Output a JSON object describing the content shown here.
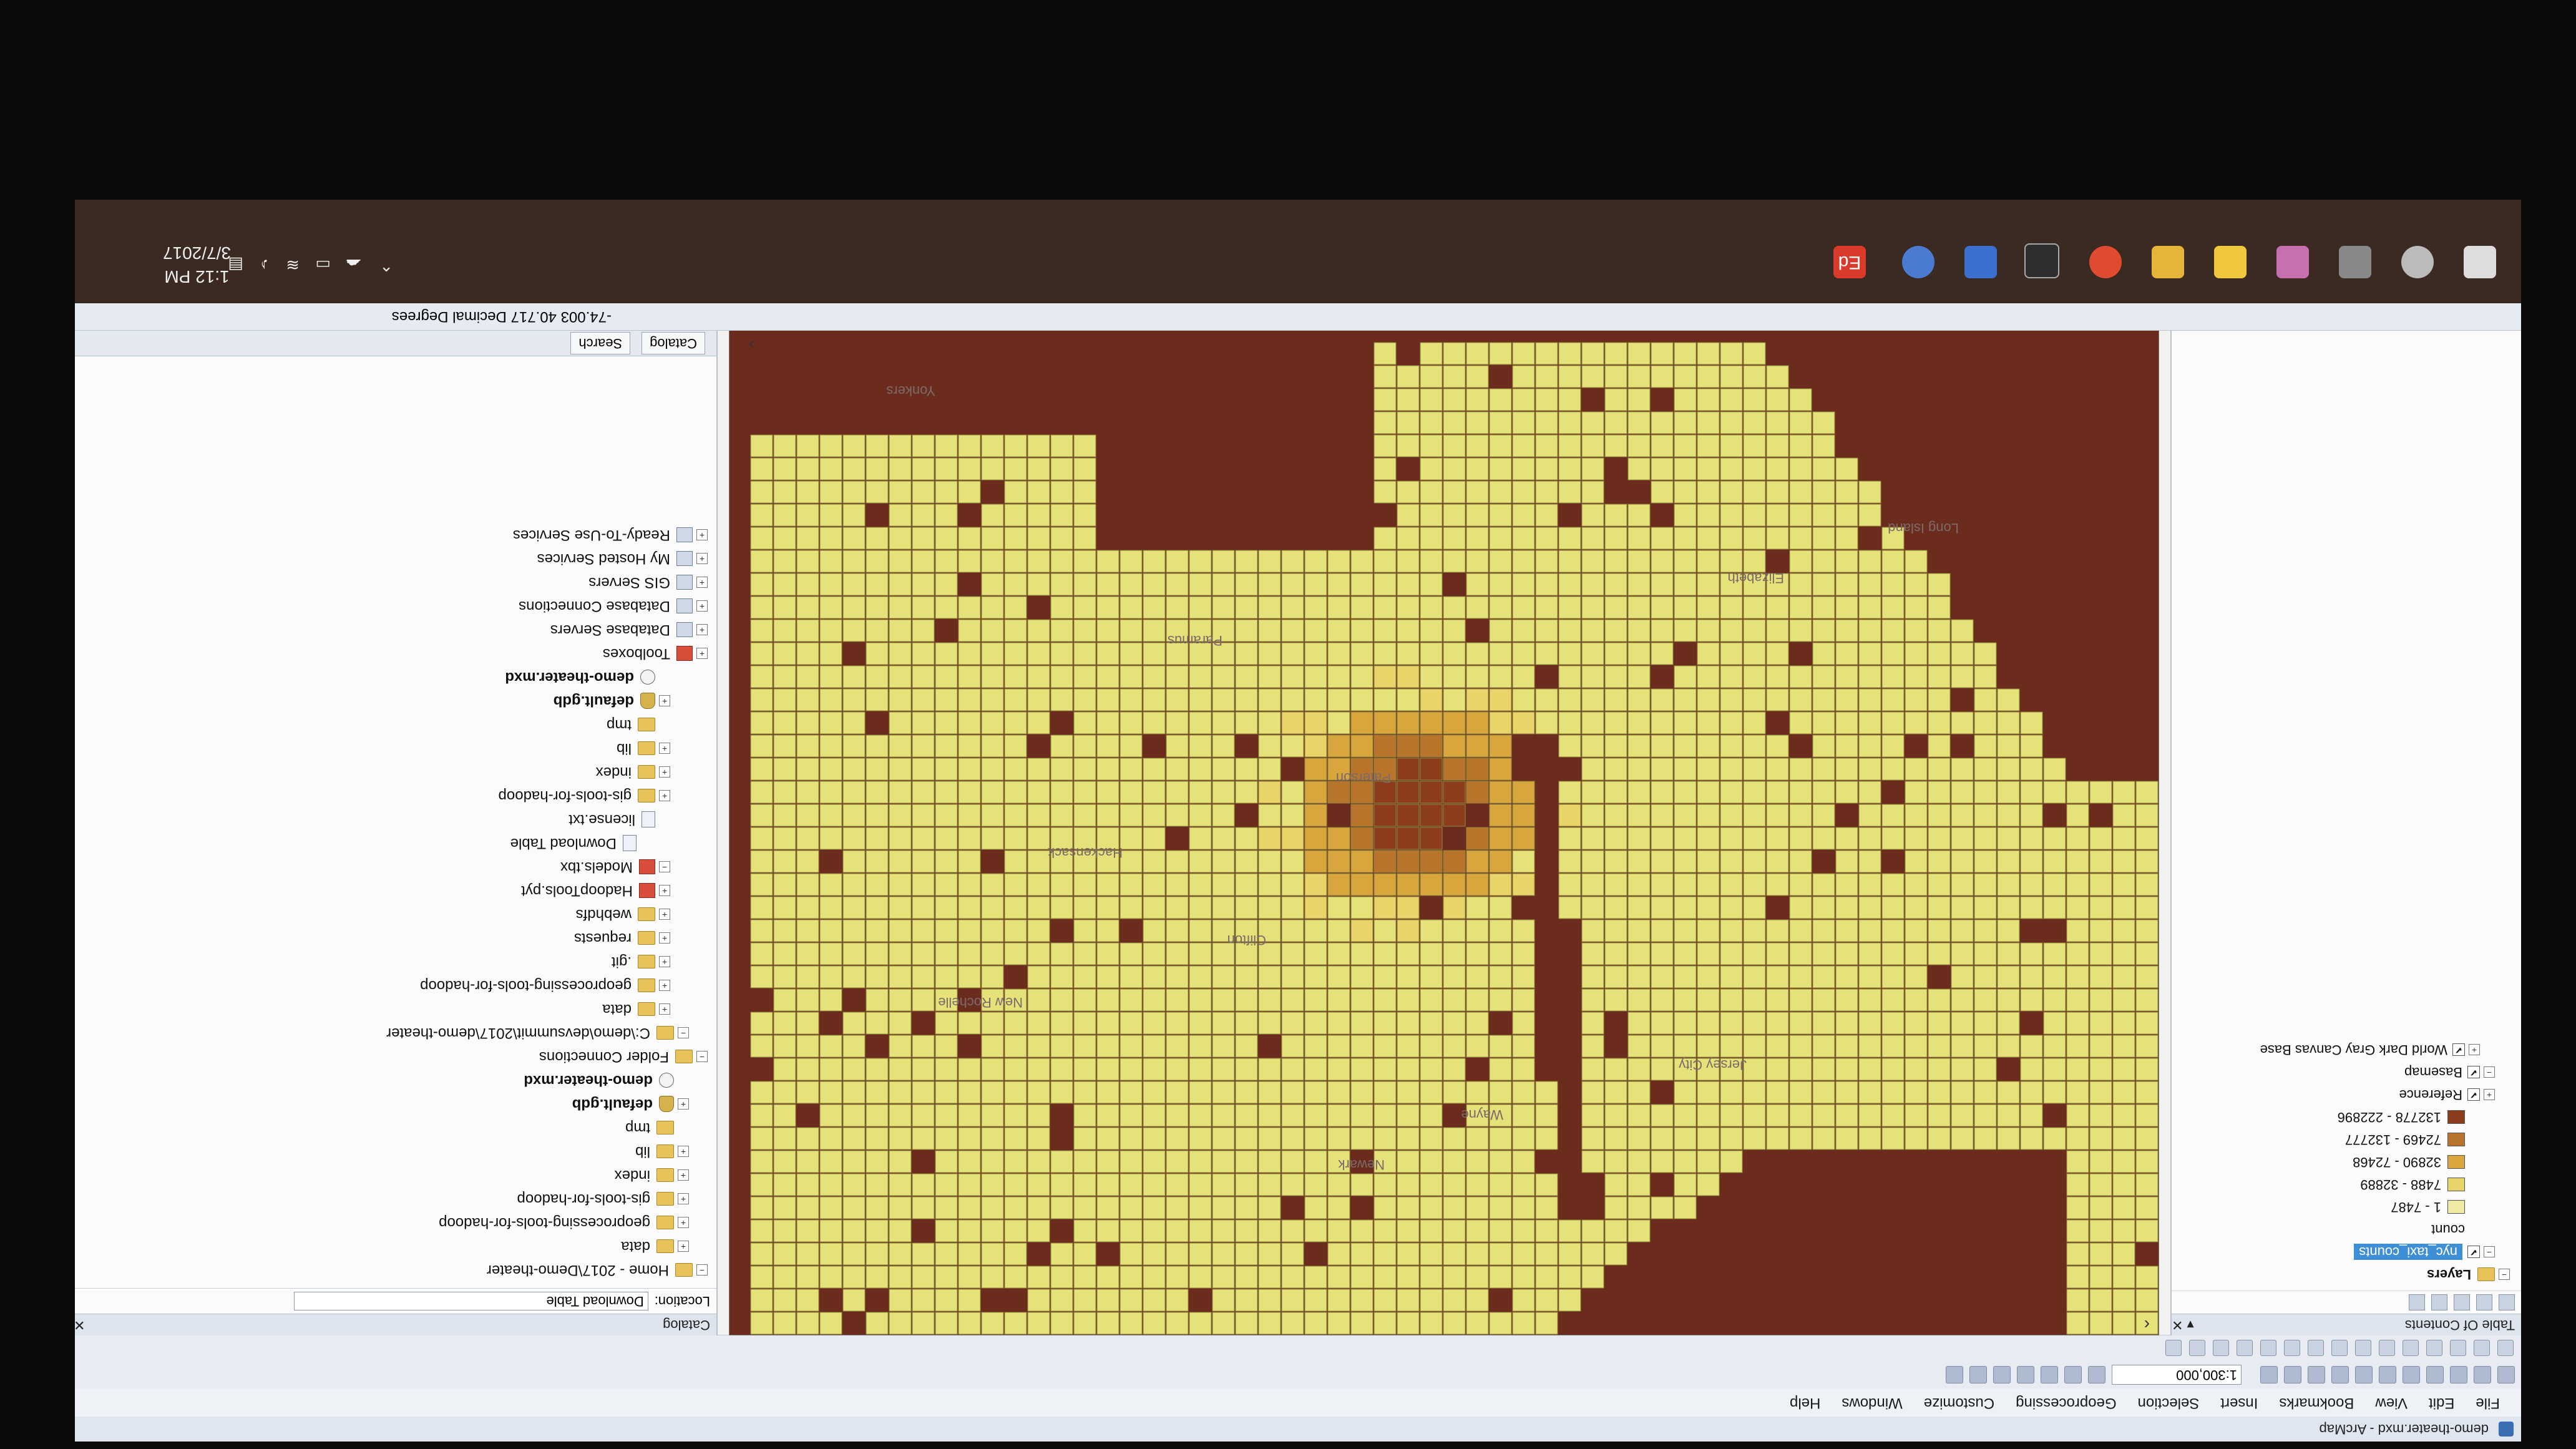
{
  "window": {
    "title": "demo-theater.mxd - ArcMap"
  },
  "menu": [
    "File",
    "Edit",
    "View",
    "Bookmarks",
    "Insert",
    "Selection",
    "Geoprocessing",
    "Customize",
    "Windows",
    "Help"
  ],
  "toolbar": {
    "scale": "1:300,000"
  },
  "toc": {
    "title": "Table Of Contents",
    "pin": "▾ ✕",
    "layers_label": "Layers",
    "selected_layer": "nyc_taxi_counts",
    "field": "count",
    "legend": [
      {
        "label": "1 - 7487",
        "color": "#efe9a4"
      },
      {
        "label": "7488 - 32889",
        "color": "#e9d46a"
      },
      {
        "label": "32890 - 72468",
        "color": "#d9a53d"
      },
      {
        "label": "72469 - 132777",
        "color": "#b8742a"
      },
      {
        "label": "132778 - 222896",
        "color": "#8a3c1b"
      }
    ],
    "reference": "Reference",
    "basemap": "Basemap",
    "basemap_layer": "World Dark Gray Canvas Base"
  },
  "map": {
    "colors": {
      "background": "#6b2c1d",
      "cell": "#e6e27a",
      "grid": "#8f8a3c"
    },
    "labels": [
      "Yonkers",
      "Paramus",
      "New Rochelle",
      "Hackensack",
      "Wayne",
      "Clifton",
      "Paterson",
      "Long Island",
      "Jersey City",
      "Newark",
      "Elizabeth"
    ]
  },
  "catalog": {
    "title": "Catalog",
    "location_label": "Location:",
    "location_value": "Download Table",
    "tree": [
      {
        "label": "Home - 2017\\Demo-theater",
        "icon": "folder",
        "level": 0,
        "expander": "−"
      },
      {
        "label": "data",
        "icon": "folder",
        "level": 1,
        "expander": "+"
      },
      {
        "label": "geoprocessing-tools-for-hadoop",
        "icon": "folder",
        "level": 1,
        "expander": "+"
      },
      {
        "label": "gis-tools-for-hadoop",
        "icon": "folder",
        "level": 1,
        "expander": "+"
      },
      {
        "label": "index",
        "icon": "folder",
        "level": 1,
        "expander": "+"
      },
      {
        "label": "lib",
        "icon": "folder",
        "level": 1,
        "expander": "+"
      },
      {
        "label": "tmp",
        "icon": "folder",
        "level": 1,
        "expander": ""
      },
      {
        "label": "default.gdb",
        "icon": "gdb",
        "level": 1,
        "expander": "+",
        "bold": true
      },
      {
        "label": "demo-theater.mxd",
        "icon": "mxd",
        "level": 1,
        "expander": "",
        "bold": true
      },
      {
        "label": "Folder Connections",
        "icon": "folder",
        "level": 0,
        "expander": "−"
      },
      {
        "label": "C:\\demo\\devsummit\\2017\\demo-theater",
        "icon": "folder",
        "level": 1,
        "expander": "−"
      },
      {
        "label": "data",
        "icon": "folder",
        "level": 2,
        "expander": "+"
      },
      {
        "label": "geoprocessing-tools-for-hadoop",
        "icon": "folder",
        "level": 2,
        "expander": "+"
      },
      {
        "label": ".git",
        "icon": "folder",
        "level": 2,
        "expander": "+"
      },
      {
        "label": "requests",
        "icon": "folder",
        "level": 2,
        "expander": "+"
      },
      {
        "label": "webhdfs",
        "icon": "folder",
        "level": 2,
        "expander": "+"
      },
      {
        "label": "HadoopTools.pyt",
        "icon": "toolbox",
        "level": 2,
        "expander": "+"
      },
      {
        "label": "Models.tbx",
        "icon": "toolbox",
        "level": 2,
        "expander": "−"
      },
      {
        "label": "Download Table",
        "icon": "model",
        "level": 3,
        "expander": ""
      },
      {
        "label": "license.txt",
        "icon": "file",
        "level": 2,
        "expander": ""
      },
      {
        "label": "gis-tools-for-hadoop",
        "icon": "folder",
        "level": 2,
        "expander": "+"
      },
      {
        "label": "index",
        "icon": "folder",
        "level": 2,
        "expander": "+"
      },
      {
        "label": "lib",
        "icon": "folder",
        "level": 2,
        "expander": "+"
      },
      {
        "label": "tmp",
        "icon": "folder",
        "level": 2,
        "expander": ""
      },
      {
        "label": "default.gdb",
        "icon": "gdb",
        "level": 2,
        "expander": "+",
        "bold": true
      },
      {
        "label": "demo-theater.mxd",
        "icon": "mxd",
        "level": 2,
        "expander": "",
        "bold": true
      },
      {
        "label": "Toolboxes",
        "icon": "toolbox",
        "level": 0,
        "expander": "+"
      },
      {
        "label": "Database Servers",
        "icon": "server",
        "level": 0,
        "expander": "+"
      },
      {
        "label": "Database Connections",
        "icon": "server",
        "level": 0,
        "expander": "+"
      },
      {
        "label": "GIS Servers",
        "icon": "server",
        "level": 0,
        "expander": "+"
      },
      {
        "label": "My Hosted Services",
        "icon": "server",
        "level": 0,
        "expander": "+"
      },
      {
        "label": "Ready-To-Use Services",
        "icon": "server",
        "level": 0,
        "expander": "+"
      }
    ],
    "tabs": [
      "Catalog",
      "Search"
    ]
  },
  "status": {
    "coords": "-74.003  40.717 Decimal Degrees"
  },
  "taskbar": {
    "time": "1:12 PM",
    "date": "3/7/2017",
    "app_badge": "Ed"
  }
}
